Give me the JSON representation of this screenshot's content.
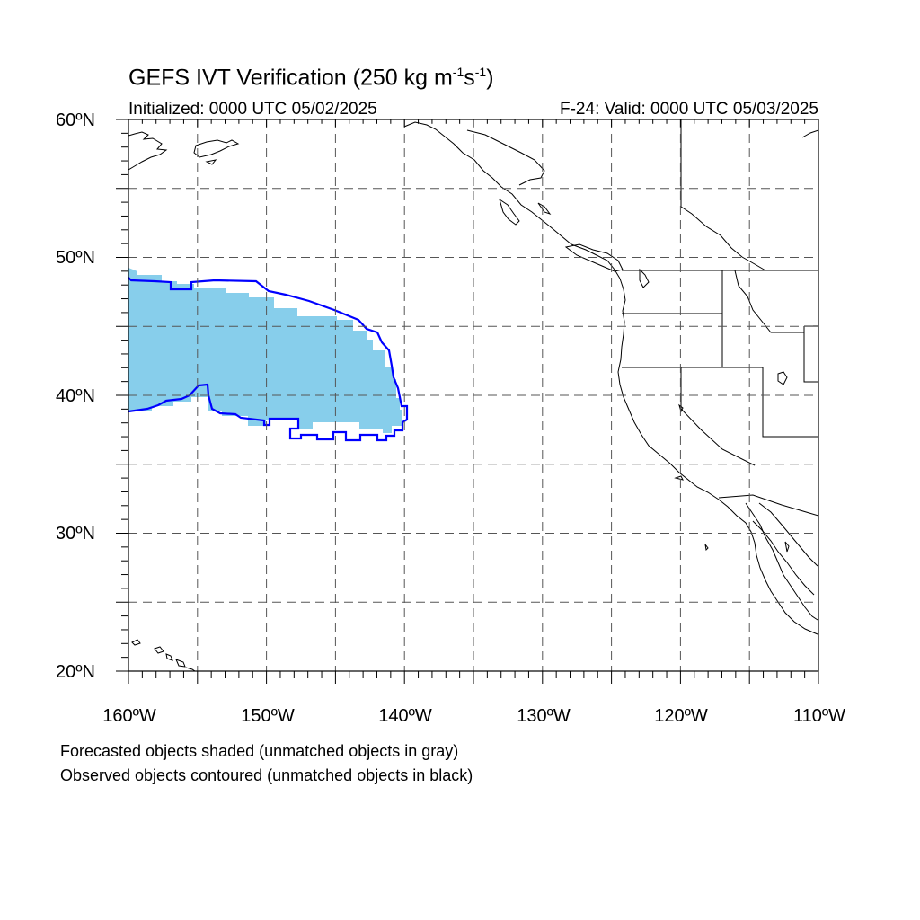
{
  "title": {
    "main": "GEFS IVT Verification (250 kg m",
    "exp1": "-1",
    "mid": "s",
    "exp2": "-1",
    "end": ")"
  },
  "subtitle": {
    "initialized": "Initialized: 0000 UTC 05/02/2025",
    "valid": "F-24: Valid: 0000 UTC 05/03/2025"
  },
  "axes": {
    "lat_labels": [
      "60ºN",
      "50ºN",
      "40ºN",
      "30ºN",
      "20ºN"
    ],
    "lon_labels": [
      "160ºW",
      "150ºW",
      "140ºW",
      "130ºW",
      "120ºW",
      "110ºW"
    ],
    "lon_range": [
      -160,
      -110
    ],
    "lat_range": [
      20,
      60
    ],
    "grid": true
  },
  "objects": {
    "forecast_fill_color": "#87ceeb",
    "observed_contour_color": "#0000ff"
  },
  "notes": {
    "forecast": "Forecasted objects shaded (unmatched objects in gray)",
    "observed": "Observed objects contoured (unmatched objects in black)"
  }
}
